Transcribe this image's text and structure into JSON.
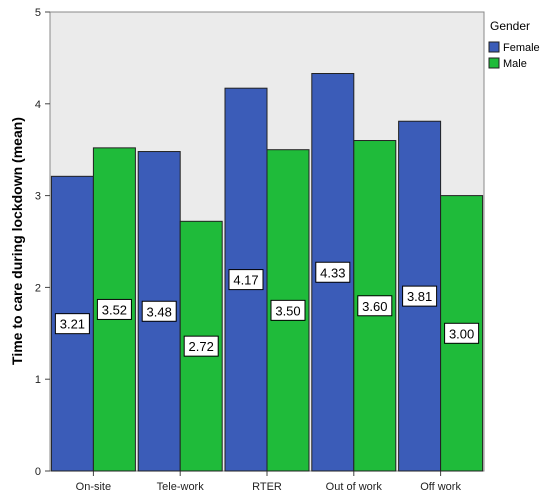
{
  "chart_data": {
    "type": "bar",
    "title": "",
    "xlabel": "",
    "ylabel": "Time to care during lockdown (mean)",
    "ylim": [
      0,
      5
    ],
    "yticks": [
      0,
      1,
      2,
      3,
      4,
      5
    ],
    "grid": false,
    "categories": [
      "On-site",
      "Tele-work",
      "RTER",
      "Out of work",
      "Off work"
    ],
    "series": [
      {
        "name": "Female",
        "color": "#3b5cb8",
        "values": [
          3.21,
          3.48,
          4.17,
          4.33,
          3.81
        ],
        "labels": [
          "3.21",
          "3.48",
          "4.17",
          "4.33",
          "3.81"
        ]
      },
      {
        "name": "Male",
        "color": "#1fbb3a",
        "values": [
          3.52,
          2.72,
          3.5,
          3.6,
          3.0
        ],
        "labels": [
          "3.52",
          "2.72",
          "3.50",
          "3.60",
          "3.00"
        ]
      }
    ],
    "legend": {
      "title": "Gender",
      "position": "top-right"
    },
    "plot_background": "#ebebeb"
  }
}
